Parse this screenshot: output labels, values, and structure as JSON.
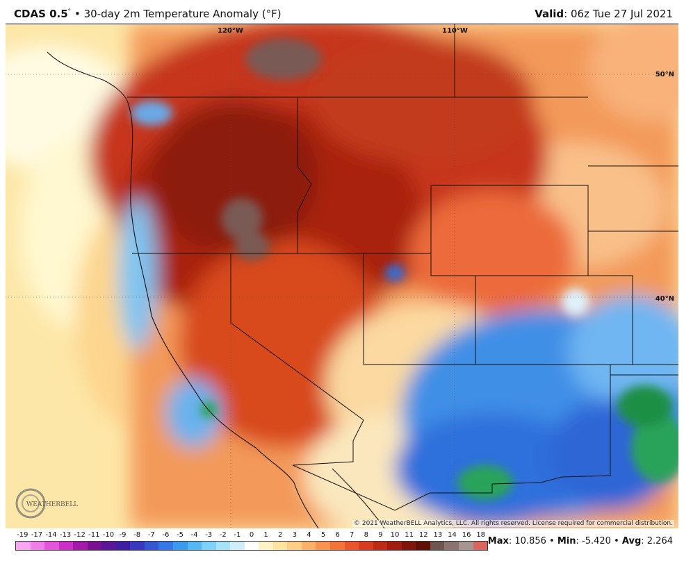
{
  "header": {
    "model": "CDAS 0.5",
    "degree_mark": "°",
    "bullet": "•",
    "title": "30-day 2m Temperature Anomaly (°F)",
    "valid_label": "Valid",
    "valid_value": ": 06z Tue 27 Jul 2021"
  },
  "map": {
    "lon_labels": [
      "120°W",
      "110°W"
    ],
    "lat_labels": [
      "50°N",
      "40°N"
    ],
    "copyright": "© 2021 WeatherBELL Analytics, LLC. All rights reserved. License required for commercial distribution.",
    "logo_text": "WEATHERBELL"
  },
  "legend": {
    "ticks": [
      "-19",
      "-17",
      "-14",
      "-13",
      "-12",
      "-11",
      "-10",
      "-9",
      "-8",
      "-7",
      "-6",
      "-5",
      "-4",
      "-3",
      "-2",
      "-1",
      "0",
      "1",
      "2",
      "3",
      "4",
      "5",
      "6",
      "7",
      "8",
      "9",
      "10",
      "11",
      "12",
      "13",
      "14",
      "16",
      "18"
    ],
    "colors": [
      "#f7a6f2",
      "#f07ee8",
      "#e455d9",
      "#cc2fc6",
      "#a41aa8",
      "#7a1190",
      "#5a1599",
      "#3e1fa3",
      "#3a37c0",
      "#3557d6",
      "#3378e6",
      "#3a9af0",
      "#55b8f5",
      "#7ed1f8",
      "#a7e3f8",
      "#cfeefa",
      "#ffffff",
      "#fff3c4",
      "#ffe3a0",
      "#fdcf86",
      "#fab26a",
      "#f8944f",
      "#f4733a",
      "#ec542b",
      "#d83b1f",
      "#bf2a16",
      "#a01d10",
      "#7f150c",
      "#5f1108",
      "#6d5550",
      "#8b7470",
      "#a79592",
      "#d8655e"
    ],
    "max_label": "Max",
    "max_value": ": 10.856",
    "min_label": "Min",
    "min_value": ": -5.420",
    "avg_label": "Avg",
    "avg_value": ": 2.264",
    "separator": "•"
  }
}
